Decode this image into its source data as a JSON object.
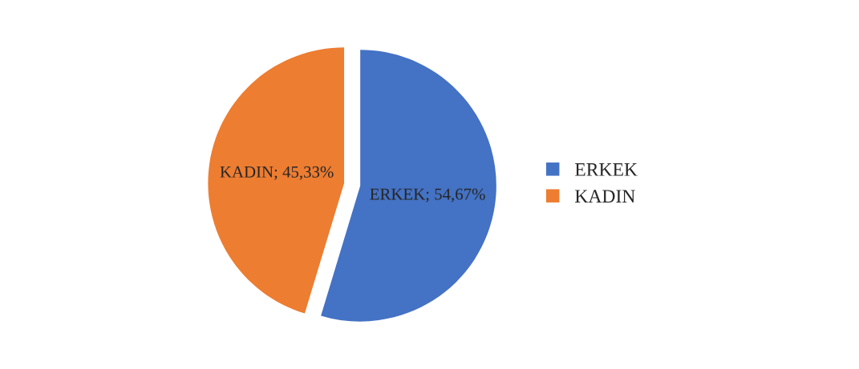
{
  "chart_data": {
    "type": "pie",
    "categories": [
      "ERKEK",
      "KADIN"
    ],
    "values": [
      54.67,
      45.33
    ],
    "colors": [
      "#4472c4",
      "#ed7d31"
    ],
    "value_labels": [
      "ERKEK; 54,67%",
      "KADIN; 45,33%"
    ],
    "legend": "right"
  }
}
